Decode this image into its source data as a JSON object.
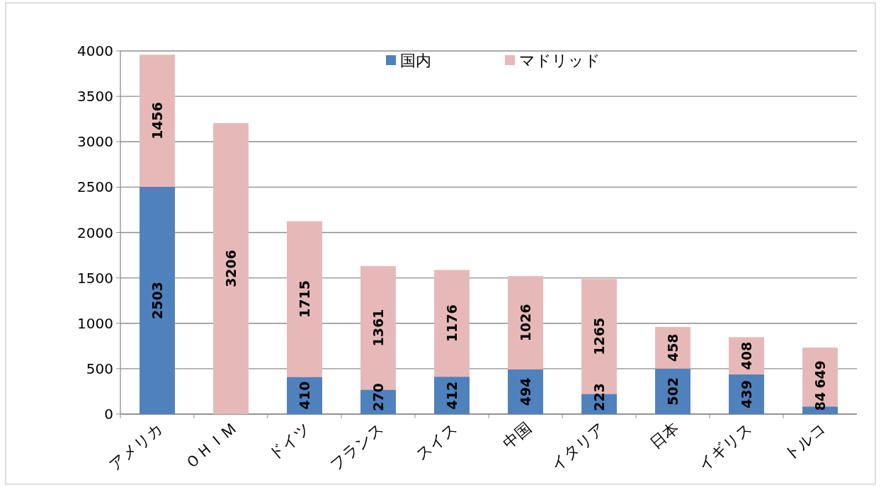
{
  "chart_data": {
    "type": "bar",
    "stacked": true,
    "categories": [
      "アメリカ",
      "ＯＨＩＭ",
      "ドイツ",
      "フランス",
      "スイス",
      "中国",
      "イタリア",
      "日本",
      "イギリス",
      "トルコ"
    ],
    "series": [
      {
        "name": "国内",
        "color": "#4f81bd",
        "values": [
          2503,
          0,
          410,
          270,
          412,
          494,
          223,
          502,
          439,
          84
        ],
        "value_labels": [
          "2503",
          null,
          "410",
          "270",
          "412",
          "494",
          "223",
          "502",
          "439",
          "84"
        ]
      },
      {
        "name": "マドリッド",
        "color": "#e6b9b8",
        "values": [
          1456,
          3206,
          1715,
          1361,
          1176,
          1026,
          1265,
          458,
          408,
          649
        ],
        "value_labels": [
          "1456",
          "3206",
          "1715",
          "1361",
          "1176",
          "1026",
          "1265",
          "458",
          "408",
          "649"
        ]
      }
    ],
    "ylim": [
      0,
      4000
    ],
    "yticks": [
      0,
      500,
      1000,
      1500,
      2000,
      2500,
      3000,
      3500,
      4000
    ],
    "grid": "y",
    "legend": "top"
  }
}
